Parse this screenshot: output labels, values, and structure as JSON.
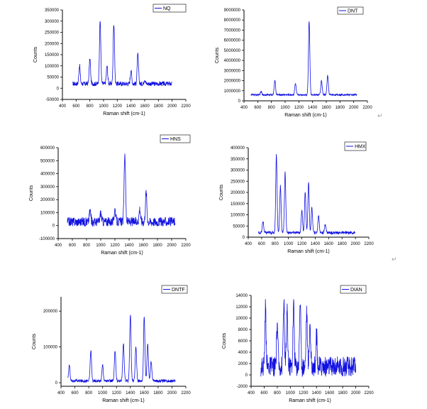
{
  "chart_data": [
    {
      "type": "line",
      "legend": "NQ",
      "xlabel": "Raman shift (cm-1)",
      "ylabel": "Counts",
      "xlim": [
        400,
        2200
      ],
      "ylim": [
        -50000,
        350000
      ],
      "xticks": [
        "400",
        "600",
        "800",
        "1000",
        "1200",
        "1400",
        "1600",
        "1800",
        "2000",
        "2200"
      ],
      "yticks": [
        "-50000",
        "0",
        "50000",
        "100000",
        "150000",
        "200000",
        "250000",
        "300000",
        "350000"
      ],
      "baseline": 20000,
      "noise": 10000,
      "x_range": [
        550,
        2000
      ],
      "peaks": [
        [
          650,
          100000
        ],
        [
          800,
          130000
        ],
        [
          950,
          300000
        ],
        [
          1050,
          100000
        ],
        [
          1150,
          290000
        ],
        [
          1400,
          80000
        ],
        [
          1500,
          150000
        ],
        [
          1600,
          40000
        ]
      ],
      "legend_position": "top-right"
    },
    {
      "type": "line",
      "legend": "DNT",
      "xlabel": "Raman shift (cm-1)",
      "ylabel": "Counts",
      "xlim": [
        400,
        2200
      ],
      "ylim": [
        0,
        9000000
      ],
      "xticks": [
        "400",
        "600",
        "800",
        "1000",
        "1200",
        "1400",
        "1600",
        "1800",
        "2000",
        "2200"
      ],
      "yticks": [
        "0",
        "1000000",
        "2000000",
        "3000000",
        "4000000",
        "5000000",
        "6000000",
        "7000000",
        "8000000",
        "9000000"
      ],
      "baseline": 600000,
      "noise": 80000,
      "x_range": [
        500,
        2050
      ],
      "peaks": [
        [
          650,
          900000
        ],
        [
          850,
          2000000
        ],
        [
          1150,
          1700000
        ],
        [
          1350,
          7900000
        ],
        [
          1530,
          2000000
        ],
        [
          1620,
          2500000
        ]
      ],
      "legend_position": "top-right"
    },
    {
      "type": "line",
      "legend": "HNS",
      "xlabel": "Raman shift (cm-1)",
      "ylabel": "Counts",
      "xlim": [
        400,
        2200
      ],
      "ylim": [
        -100000,
        600000
      ],
      "xticks": [
        "400",
        "600",
        "800",
        "1000",
        "1200",
        "1400",
        "1600",
        "1800",
        "2000",
        "2200"
      ],
      "yticks": [
        "-100000",
        "0",
        "100000",
        "200000",
        "300000",
        "400000",
        "500000",
        "600000"
      ],
      "baseline": 30000,
      "noise": 35000,
      "x_range": [
        530,
        2050
      ],
      "peaks": [
        [
          850,
          120000
        ],
        [
          1000,
          100000
        ],
        [
          1200,
          130000
        ],
        [
          1340,
          560000
        ],
        [
          1550,
          130000
        ],
        [
          1640,
          260000
        ]
      ],
      "legend_position": "top-right"
    },
    {
      "type": "line",
      "legend": "HMX",
      "xlabel": "Raman shift (cm-1)",
      "ylabel": "Counts",
      "xlim": [
        400,
        2200
      ],
      "ylim": [
        0,
        400000
      ],
      "xticks": [
        "400",
        "600",
        "800",
        "1000",
        "1200",
        "1400",
        "1600",
        "1800",
        "2000",
        "2200"
      ],
      "yticks": [
        "0",
        "50000",
        "100000",
        "150000",
        "200000",
        "250000",
        "300000",
        "350000",
        "400000"
      ],
      "baseline": 20000,
      "noise": 6000,
      "x_range": [
        550,
        2000
      ],
      "peaks": [
        [
          620,
          70000
        ],
        [
          820,
          370000
        ],
        [
          880,
          230000
        ],
        [
          950,
          290000
        ],
        [
          1200,
          120000
        ],
        [
          1250,
          200000
        ],
        [
          1300,
          240000
        ],
        [
          1350,
          130000
        ],
        [
          1450,
          100000
        ],
        [
          1550,
          60000
        ]
      ],
      "legend_position": "top-right"
    },
    {
      "type": "line",
      "legend": "DNTF",
      "xlabel": "Raman shift (cm-1)",
      "ylabel": "Counts",
      "xlim": [
        400,
        2200
      ],
      "ylim": [
        -10000,
        240000
      ],
      "xticks": [
        "400",
        "600",
        "800",
        "1000",
        "1200",
        "1400",
        "1600",
        "1800",
        "2000",
        "2200"
      ],
      "yticks": [
        "0",
        "100000",
        "200000"
      ],
      "baseline": 5000,
      "noise": 4000,
      "x_range": [
        500,
        2050
      ],
      "peaks": [
        [
          520,
          50000
        ],
        [
          830,
          90000
        ],
        [
          1000,
          50000
        ],
        [
          1180,
          90000
        ],
        [
          1300,
          110000
        ],
        [
          1400,
          190000
        ],
        [
          1480,
          100000
        ],
        [
          1600,
          185000
        ],
        [
          1650,
          110000
        ],
        [
          1700,
          60000
        ]
      ],
      "legend_position": "top-right"
    },
    {
      "type": "line",
      "legend": "DIAN",
      "xlabel": "Raman shift (cm-1)",
      "ylabel": "Counts",
      "xlim": [
        400,
        2200
      ],
      "ylim": [
        -2000,
        14000
      ],
      "xticks": [
        "400",
        "600",
        "800",
        "1000",
        "1200",
        "1400",
        "1600",
        "1800",
        "2000",
        "2200"
      ],
      "yticks": [
        "-2000",
        "0",
        "2000",
        "4000",
        "6000",
        "8000",
        "10000",
        "12000",
        "14000"
      ],
      "baseline": 1500,
      "noise": 1800,
      "x_range": [
        550,
        2000
      ],
      "peaks": [
        [
          620,
          11800
        ],
        [
          800,
          9000
        ],
        [
          900,
          12500
        ],
        [
          950,
          11000
        ],
        [
          1050,
          12300
        ],
        [
          1150,
          13000
        ],
        [
          1250,
          11000
        ],
        [
          1300,
          9000
        ],
        [
          1400,
          7000
        ]
      ],
      "legend_position": "top-right"
    }
  ],
  "marks": [
    "↵",
    "↵"
  ]
}
